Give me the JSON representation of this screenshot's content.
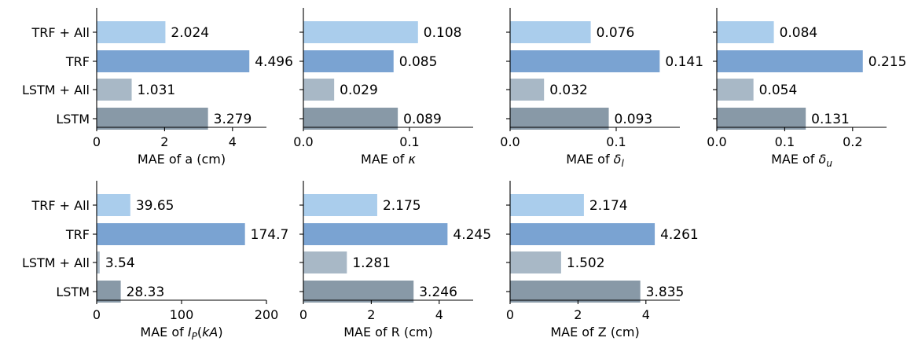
{
  "chart_data": [
    {
      "type": "bar",
      "orientation": "horizontal",
      "categories": [
        "TRF + All",
        "TRF",
        "LSTM + All",
        "LSTM"
      ],
      "values": [
        2.024,
        4.496,
        1.031,
        3.279
      ],
      "value_labels": [
        "2.024",
        "4.496",
        "1.031",
        "3.279"
      ],
      "xlabel": "MAE of a (cm)",
      "xlim": [
        0,
        5
      ],
      "xticks": [
        0,
        2,
        4
      ],
      "xtick_labels": [
        "0",
        "2",
        "4"
      ],
      "show_categories": true
    },
    {
      "type": "bar",
      "orientation": "horizontal",
      "categories": [
        "TRF + All",
        "TRF",
        "LSTM + All",
        "LSTM"
      ],
      "values": [
        0.108,
        0.085,
        0.029,
        0.089
      ],
      "value_labels": [
        "0.108",
        "0.085",
        "0.029",
        "0.089"
      ],
      "xlabel": "MAE of κ",
      "xlim": [
        0,
        0.16
      ],
      "xticks": [
        0,
        0.1
      ],
      "xtick_labels": [
        "0.0",
        "0.1"
      ],
      "show_categories": false
    },
    {
      "type": "bar",
      "orientation": "horizontal",
      "categories": [
        "TRF + All",
        "TRF",
        "LSTM + All",
        "LSTM"
      ],
      "values": [
        0.076,
        0.141,
        0.032,
        0.093
      ],
      "value_labels": [
        "0.076",
        "0.141",
        "0.032",
        "0.093"
      ],
      "xlabel": "MAE of δl",
      "xlim": [
        0,
        0.16
      ],
      "xticks": [
        0,
        0.1
      ],
      "xtick_labels": [
        "0.0",
        "0.1"
      ],
      "show_categories": false
    },
    {
      "type": "bar",
      "orientation": "horizontal",
      "categories": [
        "TRF + All",
        "TRF",
        "LSTM + All",
        "LSTM"
      ],
      "values": [
        0.084,
        0.215,
        0.054,
        0.131
      ],
      "value_labels": [
        "0.084",
        "0.215",
        "0.054",
        "0.131"
      ],
      "xlabel": "MAE of δu",
      "xlim": [
        0,
        0.25
      ],
      "xticks": [
        0,
        0.1,
        0.2
      ],
      "xtick_labels": [
        "0.0",
        "0.1",
        "0.2"
      ],
      "show_categories": false
    },
    {
      "type": "bar",
      "orientation": "horizontal",
      "categories": [
        "TRF + All",
        "TRF",
        "LSTM + All",
        "LSTM"
      ],
      "values": [
        39.65,
        174.7,
        3.54,
        28.33
      ],
      "value_labels": [
        "39.65",
        "174.7",
        "3.54",
        "28.33"
      ],
      "xlabel": "MAE of IP(kA)",
      "xlim": [
        0,
        200
      ],
      "xticks": [
        0,
        100,
        200
      ],
      "xtick_labels": [
        "0",
        "100",
        "200"
      ],
      "show_categories": true
    },
    {
      "type": "bar",
      "orientation": "horizontal",
      "categories": [
        "TRF + All",
        "TRF",
        "LSTM + All",
        "LSTM"
      ],
      "values": [
        2.175,
        4.245,
        1.281,
        3.246
      ],
      "value_labels": [
        "2.175",
        "4.245",
        "1.281",
        "3.246"
      ],
      "xlabel": "MAE of R (cm)",
      "xlim": [
        0,
        5
      ],
      "xticks": [
        0,
        2,
        4
      ],
      "xtick_labels": [
        "0",
        "2",
        "4"
      ],
      "show_categories": false
    },
    {
      "type": "bar",
      "orientation": "horizontal",
      "categories": [
        "TRF + All",
        "TRF",
        "LSTM + All",
        "LSTM"
      ],
      "values": [
        2.174,
        4.261,
        1.502,
        3.835
      ],
      "value_labels": [
        "2.174",
        "4.261",
        "1.502",
        "3.835"
      ],
      "xlabel": "MAE of Z (cm)",
      "xlim": [
        0,
        5
      ],
      "xticks": [
        0,
        2,
        4
      ],
      "xtick_labels": [
        "0",
        "2",
        "4"
      ],
      "show_categories": false
    }
  ],
  "colors": [
    "#aacdec",
    "#7aa3d2",
    "#a8b8c6",
    "#8899a7"
  ],
  "grid": false
}
